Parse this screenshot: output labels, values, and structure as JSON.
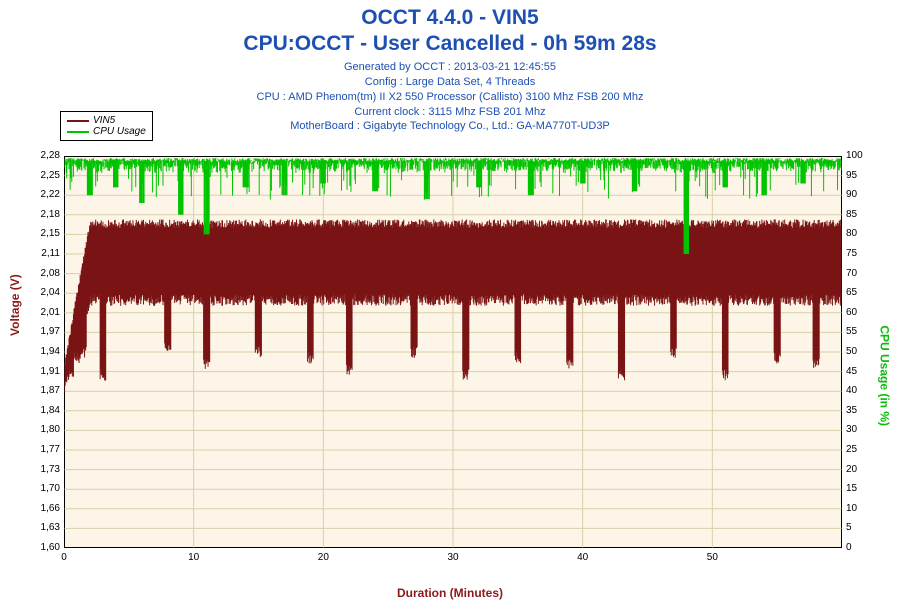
{
  "titles": {
    "line1": "OCCT 4.4.0 - VIN5",
    "line2": "CPU:OCCT - User Cancelled - 0h 59m 28s"
  },
  "meta": [
    "Generated by OCCT : 2013-03-21 12:45:55",
    "Config : Large Data Set, 4 Threads",
    "CPU : AMD Phenom(tm) II X2 550 Processor (Callisto) 3100 Mhz FSB 200 Mhz",
    "Current clock : 3115 Mhz FSB 201 Mhz",
    "MotherBoard : Gigabyte Technology Co., Ltd.: GA-MA770T-UD3P"
  ],
  "legend": {
    "items": [
      {
        "label": "VIN5",
        "color": "#7a1414"
      },
      {
        "label": "CPU Usage",
        "color": "#00c400"
      }
    ]
  },
  "axes": {
    "xlabel": "Duration (Minutes)",
    "ylabel_left": "Voltage (V)",
    "ylabel_right": "CPU Usage (in %)",
    "xlim": [
      0,
      60
    ],
    "xtick_step": 10,
    "ylim_left": [
      1.6,
      2.28
    ],
    "ytick_left_step": 0.035,
    "ylim_right": [
      0,
      100
    ],
    "ytick_right_step": 5,
    "background_color": "#fdf6e8",
    "grid_color": "#d9cfa8",
    "left_tick_labels": [
      "1,60",
      "1,63",
      "1,66",
      "1,70",
      "1,73",
      "1,77",
      "1,80",
      "1,84",
      "1,87",
      "1,91",
      "1,94",
      "1,97",
      "2,01",
      "2,04",
      "2,08",
      "2,11",
      "2,15",
      "2,18",
      "2,22",
      "2,25",
      "2,28"
    ],
    "right_tick_labels": [
      "0",
      "5",
      "10",
      "15",
      "20",
      "25",
      "30",
      "35",
      "40",
      "45",
      "50",
      "55",
      "60",
      "65",
      "70",
      "75",
      "80",
      "85",
      "90",
      "95",
      "100"
    ],
    "x_tick_labels": [
      "0",
      "10",
      "20",
      "30",
      "40",
      "50"
    ]
  },
  "series": {
    "vin5": {
      "type": "line",
      "color": "#7a1414",
      "line_width": 1,
      "y_axis": "left",
      "baseline_low": 2.04,
      "baseline_high": 2.17,
      "startup": {
        "from_x": 0,
        "to_x": 2,
        "from_y": 1.92,
        "to_y": 2.1
      },
      "dips": [
        {
          "x": 0.5,
          "y": 1.91
        },
        {
          "x": 1,
          "y": 1.94
        },
        {
          "x": 1.5,
          "y": 1.95
        },
        {
          "x": 3,
          "y": 1.91
        },
        {
          "x": 8,
          "y": 1.96
        },
        {
          "x": 11,
          "y": 1.93
        },
        {
          "x": 15,
          "y": 1.95
        },
        {
          "x": 19,
          "y": 1.94
        },
        {
          "x": 22,
          "y": 1.92
        },
        {
          "x": 27,
          "y": 1.95
        },
        {
          "x": 31,
          "y": 1.91
        },
        {
          "x": 35,
          "y": 1.94
        },
        {
          "x": 39,
          "y": 1.93
        },
        {
          "x": 43,
          "y": 1.91
        },
        {
          "x": 47,
          "y": 1.95
        },
        {
          "x": 51,
          "y": 1.91
        },
        {
          "x": 55,
          "y": 1.94
        },
        {
          "x": 58,
          "y": 1.93
        }
      ]
    },
    "cpu": {
      "type": "line",
      "color": "#00c400",
      "line_width": 1,
      "y_axis": "right",
      "baseline": 99,
      "dips": [
        {
          "x": 2,
          "y": 90
        },
        {
          "x": 4,
          "y": 92
        },
        {
          "x": 6,
          "y": 88
        },
        {
          "x": 9,
          "y": 85
        },
        {
          "x": 11,
          "y": 80
        },
        {
          "x": 14,
          "y": 92
        },
        {
          "x": 17,
          "y": 90
        },
        {
          "x": 20,
          "y": 93
        },
        {
          "x": 24,
          "y": 91
        },
        {
          "x": 28,
          "y": 89
        },
        {
          "x": 32,
          "y": 92
        },
        {
          "x": 36,
          "y": 90
        },
        {
          "x": 40,
          "y": 93
        },
        {
          "x": 44,
          "y": 91
        },
        {
          "x": 48,
          "y": 75
        },
        {
          "x": 51,
          "y": 92
        },
        {
          "x": 54,
          "y": 90
        },
        {
          "x": 57,
          "y": 93
        }
      ]
    }
  },
  "style": {
    "title_color": "#1e50b3",
    "label_color_left": "#8b1a1a",
    "label_color_right": "#0dbb0d",
    "title_fontsize": 21,
    "meta_fontsize": 11,
    "tick_fontsize": 10,
    "label_fontsize": 12
  }
}
